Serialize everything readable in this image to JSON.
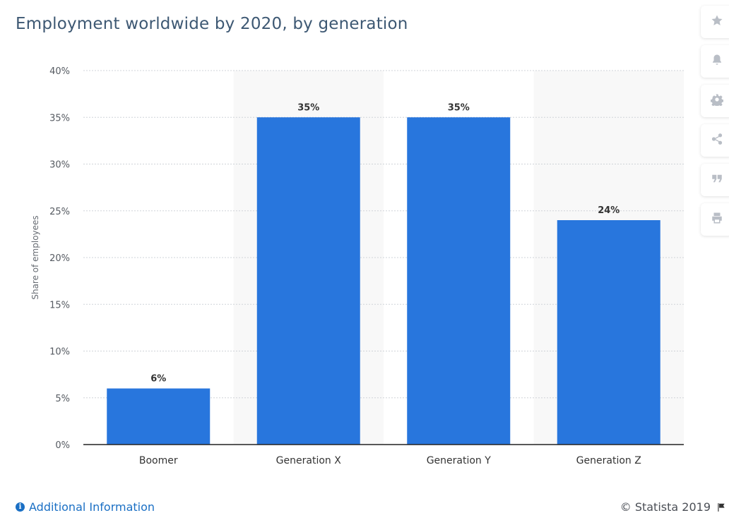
{
  "page": {
    "title": "Employment worldwide by 2020, by generation"
  },
  "toolbar": {
    "items": [
      {
        "icon": "star-icon",
        "name": "favorite"
      },
      {
        "icon": "bell-icon",
        "name": "notifications"
      },
      {
        "icon": "gear-icon",
        "name": "settings"
      },
      {
        "icon": "share-icon",
        "name": "share"
      },
      {
        "icon": "quote-icon",
        "name": "cite"
      },
      {
        "icon": "print-icon",
        "name": "print"
      }
    ]
  },
  "footer": {
    "additional_info": "Additional Information",
    "source": "© Statista 2019"
  },
  "colors": {
    "bar": "#2876dd",
    "title": "#3d5873",
    "link": "#1a6fc4",
    "grid": "#cfd3d8",
    "band": "#f8f8f8"
  },
  "chart_data": {
    "type": "bar",
    "title": "Employment worldwide by 2020, by generation",
    "categories": [
      "Boomer",
      "Generation X",
      "Generation Y",
      "Generation Z"
    ],
    "values": [
      6,
      35,
      35,
      24
    ],
    "value_labels": [
      "6%",
      "35%",
      "35%",
      "24%"
    ],
    "ylabel": "Share of employees",
    "xlabel": "",
    "ylim": [
      0,
      40
    ],
    "yticks": [
      0,
      5,
      10,
      15,
      20,
      25,
      30,
      35,
      40
    ],
    "ytick_labels": [
      "0%",
      "5%",
      "10%",
      "15%",
      "20%",
      "25%",
      "30%",
      "35%",
      "40%"
    ],
    "grid": true,
    "legend": "none"
  }
}
